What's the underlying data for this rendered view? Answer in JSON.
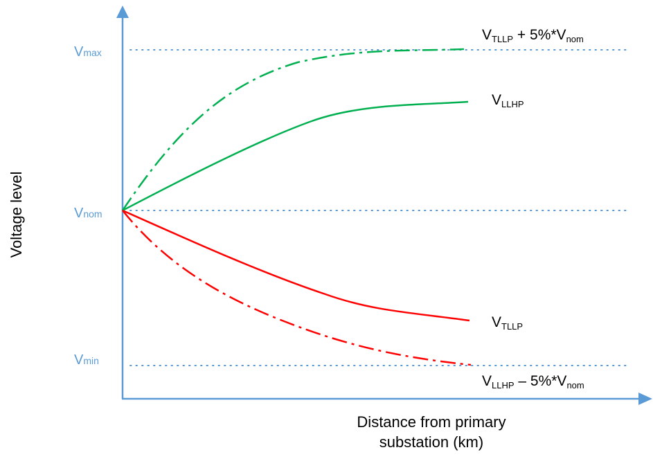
{
  "axes": {
    "y_label": "Voltage level",
    "x_label_line1": "Distance from primary",
    "x_label_line2": "substation (km)"
  },
  "levels": {
    "max": {
      "main": "V",
      "sub": "max"
    },
    "nom": {
      "main": "V",
      "sub": "nom"
    },
    "min": {
      "main": "V",
      "sub": "min"
    }
  },
  "curves": {
    "upper_limit": {
      "v": "V",
      "sub1": "TLLP",
      "mid": " + 5%*V",
      "sub2": "nom",
      "color": "#00b050",
      "style": "dash-dot"
    },
    "llhp": {
      "v": "V",
      "sub": "LLHP",
      "color": "#00b050",
      "style": "solid"
    },
    "tllp": {
      "v": "V",
      "sub": "TLLP",
      "color": "#ff0000",
      "style": "solid"
    },
    "lower_limit": {
      "v": "V",
      "sub1": "LLHP",
      "mid": " – 5%*V",
      "sub2": "nom",
      "color": "#ff0000",
      "style": "dash-dot"
    }
  },
  "colors": {
    "axis": "#5b9bd5",
    "level_text": "#5b9bd5",
    "green": "#00b050",
    "red": "#ff0000"
  }
}
